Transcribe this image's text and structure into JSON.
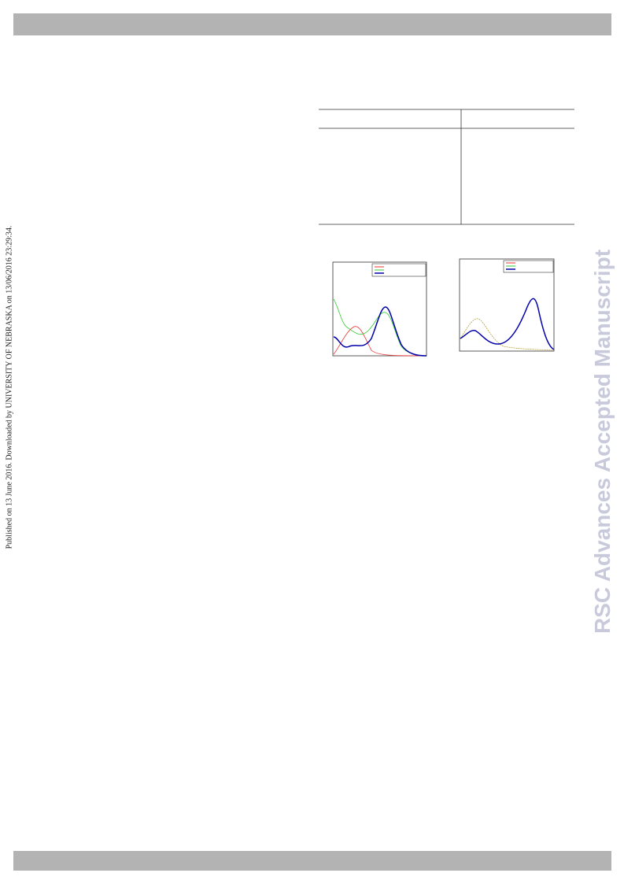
{
  "sidebar": {
    "published": "Published on 13 June 2016. Downloaded by UNIVERSITY OF NEBRASKA on 13/06/2016 23:29:34."
  },
  "watermark": "RSC Advances Accepted Manuscript"
}
